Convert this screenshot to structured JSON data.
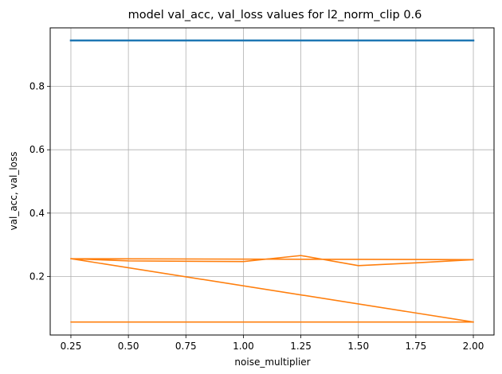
{
  "chart_data": {
    "type": "line",
    "title": "model val_acc, val_loss values for l2_norm_clip 0.6",
    "xlabel": "noise_multiplier",
    "ylabel": "val_acc, val_loss",
    "xlim": [
      0.16,
      2.09
    ],
    "ylim": [
      0.015,
      0.985
    ],
    "xticks": [
      0.25,
      0.5,
      0.75,
      1.0,
      1.25,
      1.5,
      1.75,
      2.0
    ],
    "xtick_labels": [
      "0.25",
      "0.50",
      "0.75",
      "1.00",
      "1.25",
      "1.50",
      "1.75",
      "2.00"
    ],
    "yticks": [
      0.2,
      0.4,
      0.6,
      0.8
    ],
    "ytick_labels": [
      "0.2",
      "0.4",
      "0.6",
      "0.8"
    ],
    "grid": true,
    "series": [
      {
        "color": "#1f77b4",
        "stroke_width": 2.5,
        "x": [
          0.25,
          0.5,
          0.75,
          1.0,
          1.25,
          1.5,
          1.75,
          2.0,
          0.25,
          2.0,
          0.25,
          2.0
        ],
        "y": [
          0.945,
          0.945,
          0.945,
          0.945,
          0.945,
          0.945,
          0.945,
          0.945,
          0.945,
          0.945,
          0.945,
          0.945
        ]
      },
      {
        "color": "#ff7f0e",
        "stroke_width": 1.6,
        "x": [
          0.25,
          0.5,
          0.75,
          1.0,
          1.25,
          1.5,
          1.75,
          2.0,
          0.25,
          2.0,
          0.25,
          2.0
        ],
        "y": [
          0.256,
          0.249,
          0.248,
          0.247,
          0.266,
          0.234,
          0.243,
          0.253,
          0.256,
          0.056,
          0.056,
          0.056
        ]
      }
    ]
  }
}
